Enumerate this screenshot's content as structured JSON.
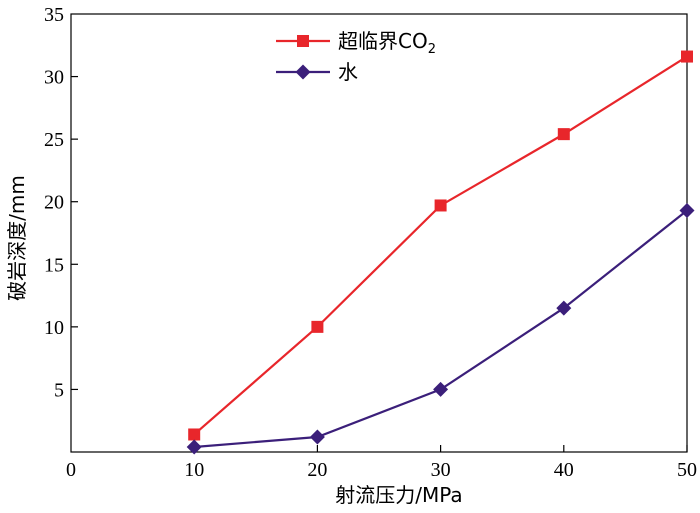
{
  "chart_data": {
    "type": "line",
    "xlabel": "射流压力/MPa",
    "ylabel": "破岩深度/mm",
    "xlim": [
      0,
      50
    ],
    "ylim": [
      0,
      35
    ],
    "xticks": [
      "0",
      "10",
      "20",
      "30",
      "40",
      "50"
    ],
    "yticks": [
      "5",
      "10",
      "15",
      "20",
      "25",
      "30",
      "35"
    ],
    "grid": false,
    "legend_position": "top-center",
    "x": [
      10,
      20,
      30,
      40,
      50
    ],
    "series": [
      {
        "name": "超临界CO",
        "name_subscript": "2",
        "marker": "square",
        "color": "#e8262b",
        "values": [
          1.4,
          10.0,
          19.7,
          25.4,
          31.6
        ]
      },
      {
        "name": "水",
        "name_subscript": "",
        "marker": "diamond",
        "color": "#3b1f7a",
        "values": [
          0.4,
          1.2,
          5.0,
          11.5,
          19.3
        ]
      }
    ]
  }
}
